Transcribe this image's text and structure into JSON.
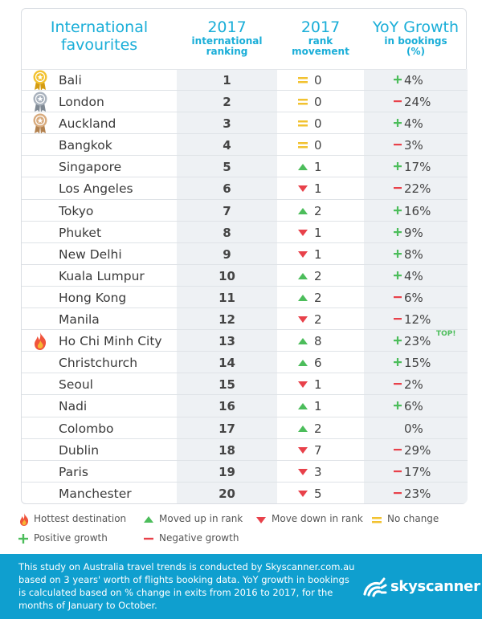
{
  "headers": {
    "favourites_line1": "International",
    "favourites_line2": "favourites",
    "rank_big": "2017",
    "rank_sub1": "international",
    "rank_sub2": "ranking",
    "move_big": "2017",
    "move_sub1": "rank",
    "move_sub2": "movement",
    "growth_big": "YoY Growth",
    "growth_sub1": "in bookings",
    "growth_sub2": "(%)"
  },
  "colors": {
    "accent": "#1aaed8",
    "up": "#4cbd5b",
    "down": "#e8414a",
    "nochange": "#f2c230",
    "footer": "#0f9fcf"
  },
  "chart_data": {
    "type": "table",
    "columns": [
      "International favourites",
      "2017 international ranking",
      "2017 rank movement",
      "YoY Growth in bookings (%)"
    ],
    "rows": [
      {
        "city": "Bali",
        "rank": "1",
        "move": "none",
        "move_value": "0",
        "growth_sign": "+",
        "growth": "4%",
        "icon": "gold-medal"
      },
      {
        "city": "London",
        "rank": "2",
        "move": "none",
        "move_value": "0",
        "growth_sign": "-",
        "growth": "24%",
        "icon": "silver-medal"
      },
      {
        "city": "Auckland",
        "rank": "3",
        "move": "none",
        "move_value": "0",
        "growth_sign": "+",
        "growth": "4%",
        "icon": "bronze-medal"
      },
      {
        "city": "Bangkok",
        "rank": "4",
        "move": "none",
        "move_value": "0",
        "growth_sign": "-",
        "growth": "3%"
      },
      {
        "city": "Singapore",
        "rank": "5",
        "move": "up",
        "move_value": "1",
        "growth_sign": "+",
        "growth": "17%"
      },
      {
        "city": "Los Angeles",
        "rank": "6",
        "move": "down",
        "move_value": "1",
        "growth_sign": "-",
        "growth": "22%"
      },
      {
        "city": "Tokyo",
        "rank": "7",
        "move": "up",
        "move_value": "2",
        "growth_sign": "+",
        "growth": "16%"
      },
      {
        "city": "Phuket",
        "rank": "8",
        "move": "down",
        "move_value": "1",
        "growth_sign": "+",
        "growth": "9%"
      },
      {
        "city": "New Delhi",
        "rank": "9",
        "move": "down",
        "move_value": "1",
        "growth_sign": "+",
        "growth": "8%"
      },
      {
        "city": "Kuala Lumpur",
        "rank": "10",
        "move": "up",
        "move_value": "2",
        "growth_sign": "+",
        "growth": "4%"
      },
      {
        "city": "Hong Kong",
        "rank": "11",
        "move": "up",
        "move_value": "2",
        "growth_sign": "-",
        "growth": "6%"
      },
      {
        "city": "Manila",
        "rank": "12",
        "move": "down",
        "move_value": "2",
        "growth_sign": "-",
        "growth": "12%"
      },
      {
        "city": "Ho Chi Minh City",
        "rank": "13",
        "move": "up",
        "move_value": "8",
        "growth_sign": "+",
        "growth": "23%",
        "icon": "fire",
        "tag": "TOP!"
      },
      {
        "city": "Christchurch",
        "rank": "14",
        "move": "up",
        "move_value": "6",
        "growth_sign": "+",
        "growth": "15%"
      },
      {
        "city": "Seoul",
        "rank": "15",
        "move": "down",
        "move_value": "1",
        "growth_sign": "-",
        "growth": "2%"
      },
      {
        "city": "Nadi",
        "rank": "16",
        "move": "up",
        "move_value": "1",
        "growth_sign": "+",
        "growth": "6%"
      },
      {
        "city": "Colombo",
        "rank": "17",
        "move": "up",
        "move_value": "2",
        "growth_sign": "",
        "growth": "0%"
      },
      {
        "city": "Dublin",
        "rank": "18",
        "move": "down",
        "move_value": "7",
        "growth_sign": "-",
        "growth": "29%"
      },
      {
        "city": "Paris",
        "rank": "19",
        "move": "down",
        "move_value": "3",
        "growth_sign": "-",
        "growth": "17%"
      },
      {
        "city": "Manchester",
        "rank": "20",
        "move": "down",
        "move_value": "5",
        "growth_sign": "-",
        "growth": "23%"
      }
    ]
  },
  "legend": {
    "hottest": "Hottest destination",
    "moved_up": "Moved up in rank",
    "moved_down": "Move down in rank",
    "no_change": "No change",
    "positive": "Positive growth",
    "negative": "Negative growth"
  },
  "footer": {
    "text": "This study on Australia travel trends is conducted by Skyscanner.com.au based on 3 years' worth of flights booking data. YoY growth in bookings is calculated based on % change in exits from 2016 to 2017, for the months of January to October.",
    "logo": "skyscanner"
  }
}
